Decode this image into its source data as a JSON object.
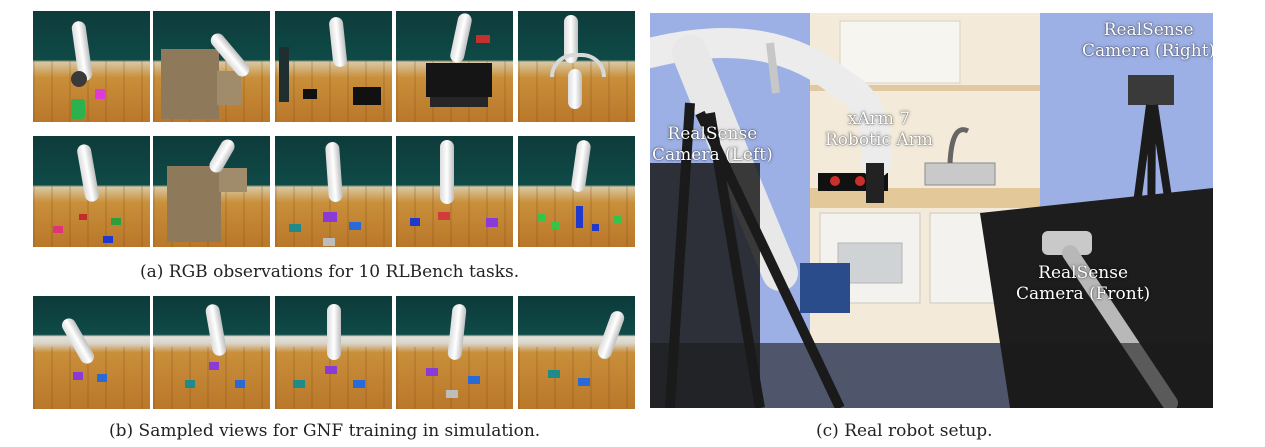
{
  "captions": {
    "a": "(a) RGB observations for 10 RLBench tasks.",
    "b": "(b) Sampled views  for GNF training in simulation.",
    "c": "(c) Real robot setup."
  },
  "real_labels": {
    "right_line1": "RealSense",
    "right_line2": "Camera (Right)",
    "left_line1": "RealSense",
    "left_line2": "Camera (Left)",
    "arm_line1": "xArm 7",
    "arm_line2": "Robotic Arm",
    "front_line1": "RealSense",
    "front_line2": "Camera (Front)"
  },
  "colors": {
    "wall": "#0f4a47",
    "floor": "#c98f3a",
    "real_background": "#9db0e6"
  }
}
